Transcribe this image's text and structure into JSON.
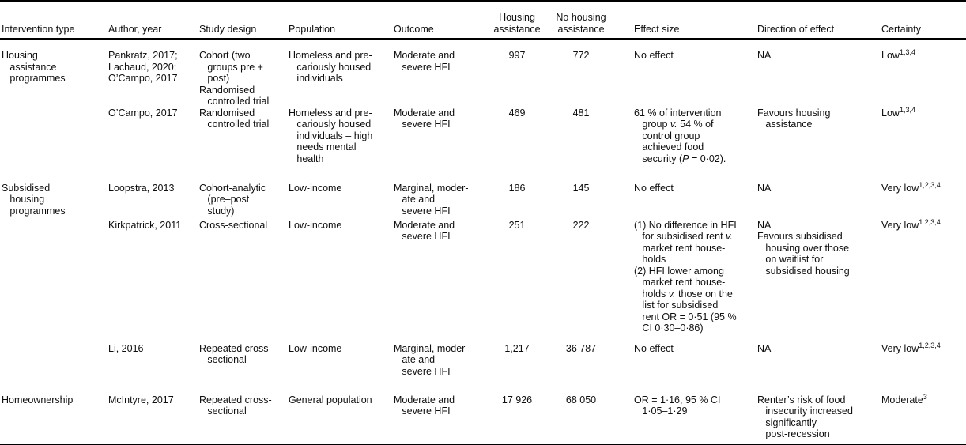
{
  "page": {
    "background_color": "#ffffff",
    "text_color": "#0e0e0e",
    "rule_color": "#000000"
  },
  "table": {
    "headers": {
      "intervention_type": "Intervention type",
      "author_year": "Author, year",
      "study_design": "Study design",
      "population": "Population",
      "outcome": "Outcome",
      "housing_assistance": "Housing\nassistance",
      "no_housing_assistance": "No housing\nassistance",
      "effect_size": "Effect size",
      "direction_of_effect": "Direction of effect",
      "certainty": "Certainty"
    },
    "rows": [
      {
        "intervention_type": "Housing\n   assistance\n   programmes",
        "author_year": "Pankratz, 2017;\nLachaud, 2020;\nO’Campo, 2017",
        "study_design": "Cohort (two\n   groups pre +\n   post)\nRandomised\n   controlled trial",
        "population": "Homeless and pre-\n   cariously housed\n   individuals",
        "outcome": "Moderate and\n   severe HFI",
        "housing_assistance": "997",
        "no_housing_assistance": "772",
        "effect_size": "No effect",
        "direction_of_effect": "NA",
        "certainty": "Low",
        "certainty_sup": "1,3,4"
      },
      {
        "intervention_type": "",
        "author_year": "O’Campo, 2017",
        "study_design": "Randomised\n   controlled trial",
        "population": "Homeless and pre-\n   cariously housed\n   individuals – high\n   needs mental\n   health",
        "outcome": "Moderate and\n   severe HFI",
        "housing_assistance": "469",
        "no_housing_assistance": "481",
        "effect_size": "61 % of intervention\n   group <i>v.</i> 54 % of\n   control group\n   achieved food\n   security (<i>P</i> = 0·02).",
        "direction_of_effect": "Favours housing\n   assistance",
        "certainty": "Low",
        "certainty_sup": "1,3,4"
      },
      {
        "intervention_type": "Subsidised\n   housing\n   programmes",
        "author_year": "Loopstra, 2013",
        "study_design": "Cohort-analytic\n   (pre–post\n   study)",
        "population": "Low-income",
        "outcome": "Marginal, moder-\n   ate and\n   severe HFI",
        "housing_assistance": "186",
        "no_housing_assistance": "145",
        "effect_size": "No effect",
        "direction_of_effect": "NA",
        "certainty": "Very low",
        "certainty_sup": "1,2,3,4"
      },
      {
        "intervention_type": "",
        "author_year": "Kirkpatrick, 2011",
        "study_design": "Cross-sectional",
        "population": "Low-income",
        "outcome": "Moderate and\n   severe HFI",
        "housing_assistance": "251",
        "no_housing_assistance": "222",
        "effect_size": "(1) No difference in HFI\n   for subsidised rent <i>v.</i>\n   market rent house-\n   holds\n(2) HFI lower among\n   market rent house-\n   holds <i>v.</i> those on the\n   list for subsidised\n   rent OR = 0·51 (95 %\n   CI 0·30–0·86)",
        "direction_of_effect": "NA\nFavours subsidised\n   housing over those\n   on waitlist for\n   subsidised housing",
        "certainty": "Very low",
        "certainty_sup": "1 2,3,4"
      },
      {
        "intervention_type": "",
        "author_year": "Li, 2016",
        "study_design": "Repeated cross-\n   sectional",
        "population": "Low-income",
        "outcome": "Marginal, moder-\n   ate and\n   severe HFI",
        "housing_assistance": "1,217",
        "no_housing_assistance": "36 787",
        "effect_size": "No effect",
        "direction_of_effect": "NA",
        "certainty": "Very low",
        "certainty_sup": "1,2,3,4"
      },
      {
        "intervention_type": "Homeownership",
        "author_year": "McIntyre, 2017",
        "study_design": "Repeated cross-\n   sectional",
        "population": "General population",
        "outcome": "Moderate and\n   severe HFI",
        "housing_assistance": "17 926",
        "no_housing_assistance": "68 050",
        "effect_size": "OR = 1·16, 95 % CI\n   1·05–1·29",
        "direction_of_effect": "Renter’s risk of food\n   insecurity increased\n   significantly\n   post-recession",
        "certainty": "Moderate",
        "certainty_sup": "3"
      }
    ]
  }
}
